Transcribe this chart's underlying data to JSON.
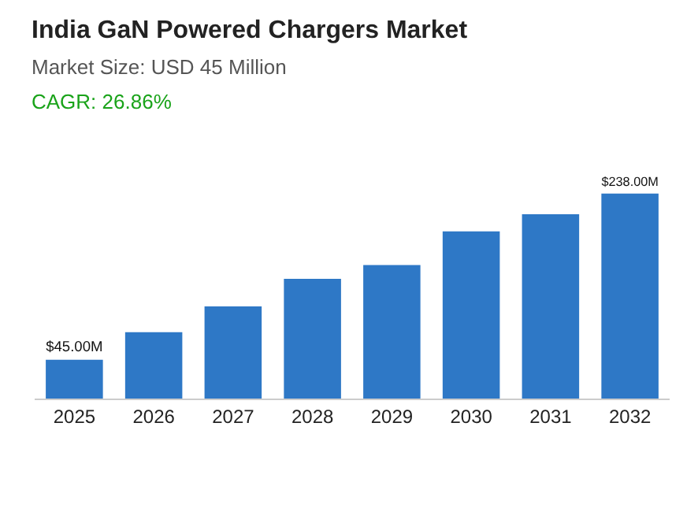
{
  "chart_data": {
    "type": "bar",
    "title": "India GaN Powered Chargers Market",
    "subtitle": "Market Size: USD 45 Million",
    "annotations": [
      "CAGR: 26.86%"
    ],
    "categories": [
      "2025",
      "2026",
      "2027",
      "2028",
      "2029",
      "2030",
      "2031",
      "2032"
    ],
    "values": [
      45,
      77,
      107,
      139,
      155,
      194,
      214,
      238
    ],
    "value_labels": [
      "$45.00M",
      null,
      null,
      null,
      null,
      null,
      null,
      "$238.00M"
    ],
    "color": "#2e78c6",
    "tick_labels": "x"
  }
}
